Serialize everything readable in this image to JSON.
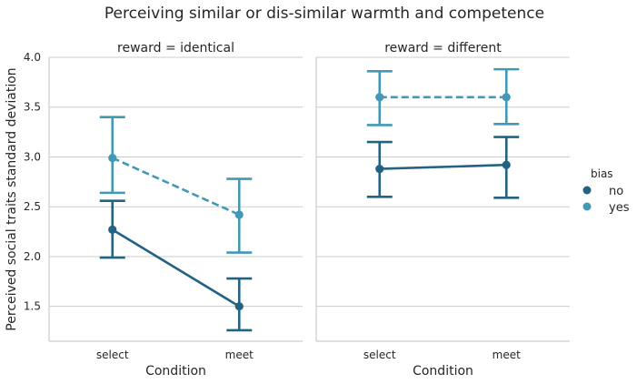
{
  "chart_data": {
    "type": "line",
    "title": "Perceiving similar or dis-similar warmth and competence",
    "ylabel": "Perceived social traits standard deviation",
    "xlabel": "Condition",
    "ylim": [
      1.15,
      4.0
    ],
    "yticks": [
      1.5,
      2.0,
      2.5,
      3.0,
      3.5,
      4.0
    ],
    "ytick_labels": [
      "1.5",
      "2.0",
      "2.5",
      "3.0",
      "3.5",
      "4.0"
    ],
    "grid": "horizontal",
    "categories": [
      "select",
      "meet"
    ],
    "legend": {
      "title": "bias",
      "position": "right",
      "entries": [
        {
          "label": "no",
          "color": "#236283"
        },
        {
          "label": "yes",
          "color": "#4399b5"
        }
      ]
    },
    "panels": [
      {
        "title": "reward = identical",
        "series": [
          {
            "name": "no",
            "values": [
              2.27,
              1.5
            ],
            "err_low": [
              1.99,
              1.26
            ],
            "err_high": [
              2.56,
              1.78
            ],
            "color": "#236283",
            "dashed": false
          },
          {
            "name": "yes",
            "values": [
              2.99,
              2.42
            ],
            "err_low": [
              2.64,
              2.04
            ],
            "err_high": [
              3.4,
              2.78
            ],
            "color": "#4399b5",
            "dashed": true
          }
        ]
      },
      {
        "title": "reward = different",
        "series": [
          {
            "name": "no",
            "values": [
              2.88,
              2.92
            ],
            "err_low": [
              2.6,
              2.59
            ],
            "err_high": [
              3.15,
              3.2
            ],
            "color": "#236283",
            "dashed": false
          },
          {
            "name": "yes",
            "values": [
              3.6,
              3.6
            ],
            "err_low": [
              3.32,
              3.33
            ],
            "err_high": [
              3.86,
              3.88
            ],
            "color": "#4399b5",
            "dashed": true
          }
        ]
      }
    ]
  }
}
